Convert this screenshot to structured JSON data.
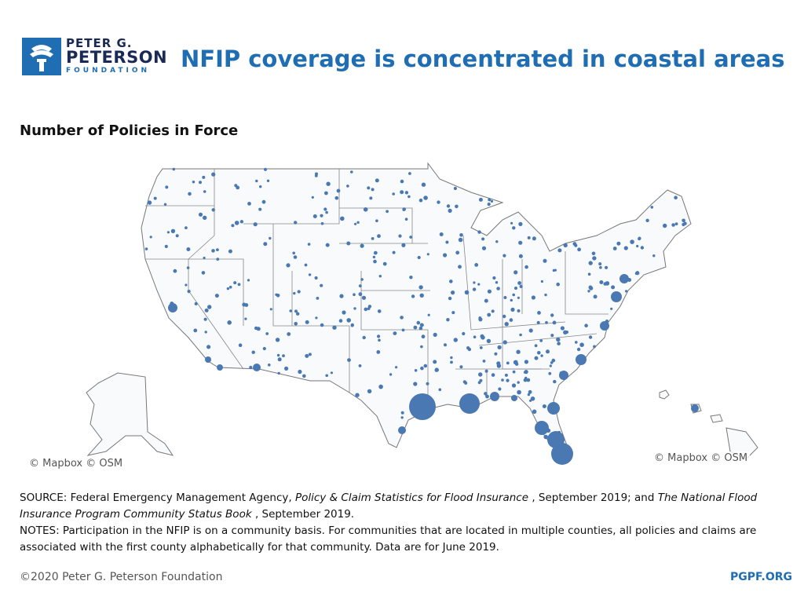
{
  "header": {
    "logo": {
      "line1": "PETER G.",
      "line2": "PETERSON",
      "line3": "FOUNDATION"
    },
    "title": "NFIP coverage is concentrated in coastal areas"
  },
  "map": {
    "subtitle": "Number of Policies in Force",
    "attributions": [
      "© Mapbox © OSM",
      "© Mapbox © OSM"
    ]
  },
  "source": {
    "parts": [
      "SOURCE: Federal Emergency Management Agency, ",
      "Policy & Claim Statistics for Flood Insurance",
      " , September 2019; and ",
      "The National Flood Insurance Program Community Status Book",
      " , September 2019."
    ]
  },
  "notes": "NOTES: Participation in the NFIP is on a community basis. For communities that are located in multiple counties, all policies and claims are associated with the first county alphabetically for that community. Data are for June 2019.",
  "footer": {
    "copyright": "©2020 Peter G. Peterson Foundation",
    "site": "PGPF.ORG"
  }
}
